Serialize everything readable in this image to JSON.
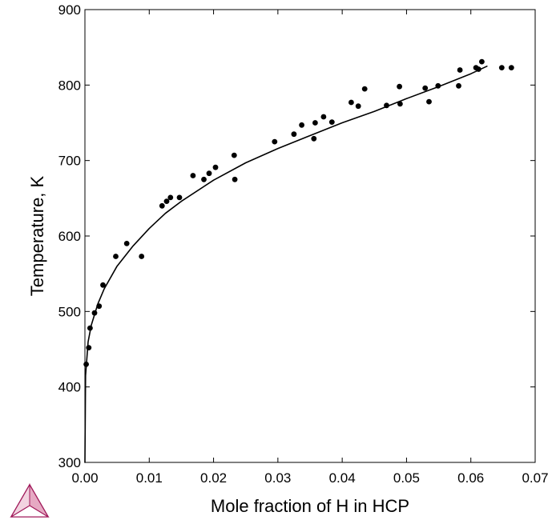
{
  "chart_data": {
    "type": "scatter",
    "title": "",
    "xlabel": "Mole fraction of H in HCP",
    "ylabel": "Temperature, K",
    "xlim": [
      0,
      0.07
    ],
    "ylim": [
      300,
      900
    ],
    "xticks": [
      0.0,
      0.01,
      0.02,
      0.03,
      0.04,
      0.05,
      0.06,
      0.07
    ],
    "xtick_labels": [
      "0.00",
      "0.01",
      "0.02",
      "0.03",
      "0.04",
      "0.05",
      "0.06",
      "0.07"
    ],
    "yticks": [
      300,
      400,
      500,
      600,
      700,
      800,
      900
    ],
    "ytick_labels": [
      "300",
      "400",
      "500",
      "600",
      "700",
      "800",
      "900"
    ],
    "grid": false,
    "series": [
      {
        "type": "line",
        "color": "#000000",
        "x": [
          0.0,
          0.0001,
          0.0005,
          0.001,
          0.002,
          0.003,
          0.005,
          0.0075,
          0.01,
          0.0125,
          0.015,
          0.02,
          0.025,
          0.03,
          0.035,
          0.04,
          0.045,
          0.05,
          0.055,
          0.06,
          0.0625
        ],
        "y": [
          300,
          415,
          460,
          482,
          510,
          530,
          560,
          587,
          610,
          630,
          646,
          674,
          697,
          716,
          733,
          750,
          765,
          782,
          798,
          815,
          825
        ]
      },
      {
        "type": "scatter",
        "color": "#000000",
        "x": [
          0.0002,
          0.0006,
          0.0008,
          0.0015,
          0.0022,
          0.0028,
          0.0048,
          0.0065,
          0.0088,
          0.012,
          0.0127,
          0.0133,
          0.0147,
          0.0168,
          0.0185,
          0.0193,
          0.0203,
          0.0232,
          0.0233,
          0.0295,
          0.0325,
          0.0337,
          0.0356,
          0.0358,
          0.0371,
          0.0384,
          0.0414,
          0.0425,
          0.0435,
          0.0469,
          0.0489,
          0.049,
          0.0529,
          0.0535,
          0.0549,
          0.0581,
          0.0583,
          0.0608,
          0.0612,
          0.0617,
          0.0648,
          0.0663
        ],
        "y": [
          430,
          452,
          478,
          498,
          507,
          535,
          573,
          590,
          573,
          640,
          646,
          651,
          651,
          680,
          675,
          683,
          691,
          707,
          675,
          725,
          735,
          747,
          729,
          750,
          758,
          751,
          777,
          772,
          795,
          773,
          798,
          775,
          796,
          778,
          799,
          799,
          820,
          823,
          821,
          831,
          823,
          823
        ]
      }
    ]
  }
}
